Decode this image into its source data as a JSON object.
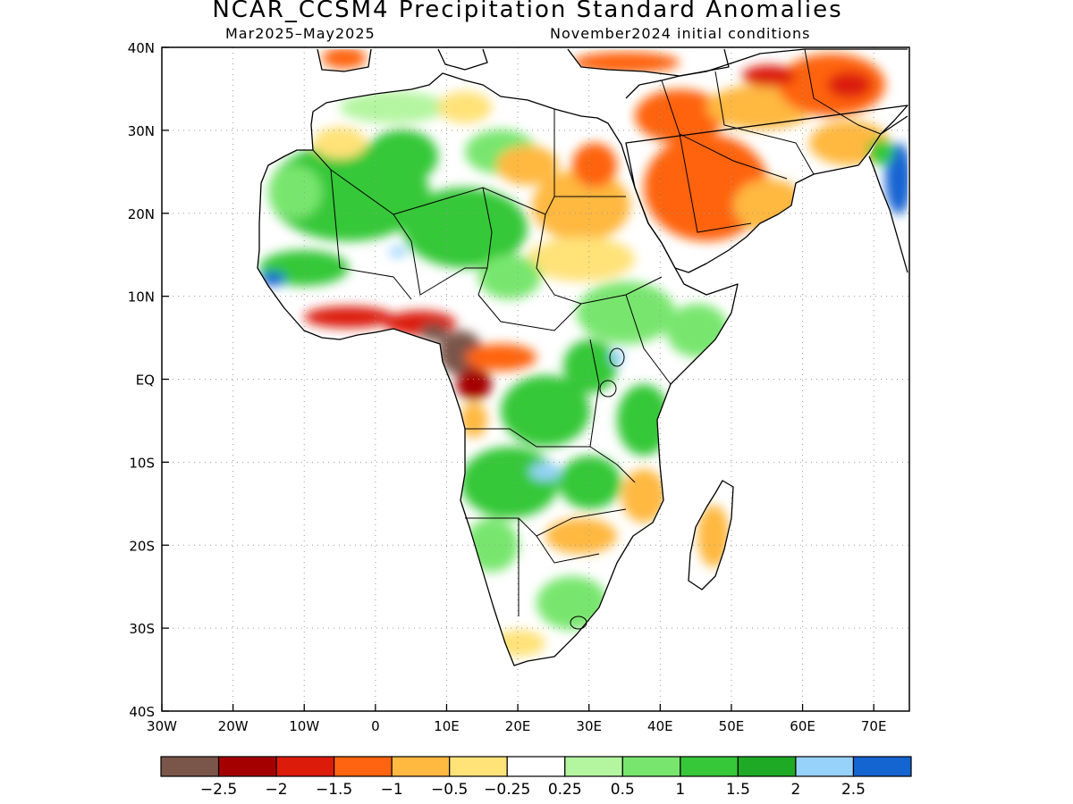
{
  "header": {
    "title": "NCAR_CCSM4 Precipitation Standard Anomalies",
    "period": "Mar2025–May2025",
    "initial_conditions": "November2024 initial conditions"
  },
  "map": {
    "lon_range": [
      -30,
      75
    ],
    "lat_range": [
      -40,
      40
    ],
    "lat_ticks": [
      {
        "lat": 40,
        "label": "40N"
      },
      {
        "lat": 30,
        "label": "30N"
      },
      {
        "lat": 20,
        "label": "20N"
      },
      {
        "lat": 10,
        "label": "10N"
      },
      {
        "lat": 0,
        "label": "EQ"
      },
      {
        "lat": -10,
        "label": "10S"
      },
      {
        "lat": -20,
        "label": "20S"
      },
      {
        "lat": -30,
        "label": "30S"
      },
      {
        "lat": -40,
        "label": "40S"
      }
    ],
    "lon_ticks": [
      {
        "lon": -30,
        "label": "30W"
      },
      {
        "lon": -20,
        "label": "20W"
      },
      {
        "lon": -10,
        "label": "10W"
      },
      {
        "lon": 0,
        "label": "0"
      },
      {
        "lon": 10,
        "label": "10E"
      },
      {
        "lon": 20,
        "label": "20E"
      },
      {
        "lon": 30,
        "label": "30E"
      },
      {
        "lon": 40,
        "label": "40E"
      },
      {
        "lon": 50,
        "label": "50E"
      },
      {
        "lon": 60,
        "label": "60E"
      },
      {
        "lon": 70,
        "label": "70E"
      }
    ],
    "grid": true
  },
  "colorbar": {
    "colors": [
      "#7a5549",
      "#a50000",
      "#dc1b0b",
      "#ff6410",
      "#ffb840",
      "#ffe278",
      "#ffffff",
      "#b4f5a0",
      "#78e66e",
      "#36c838",
      "#1eaa24",
      "#96d2fa",
      "#1464d2"
    ],
    "labels": [
      "−2.5",
      "−2",
      "−1.5",
      "−1",
      "−0.5",
      "−0.25",
      "0.25",
      "0.5",
      "1",
      "1.5",
      "2",
      "2.5"
    ]
  },
  "regions": [
    {
      "name": "sahara-north-green",
      "color": "#78e66e"
    },
    {
      "name": "arabia-dry",
      "color": "#ff6410"
    },
    {
      "name": "iran-dry",
      "color": "#dc1b0b"
    },
    {
      "name": "gulf-of-guinea-very-dry",
      "color": "#7a5549"
    },
    {
      "name": "central-africa-wet",
      "color": "#36c838"
    },
    {
      "name": "india-west-wet",
      "color": "#1464d2"
    }
  ]
}
